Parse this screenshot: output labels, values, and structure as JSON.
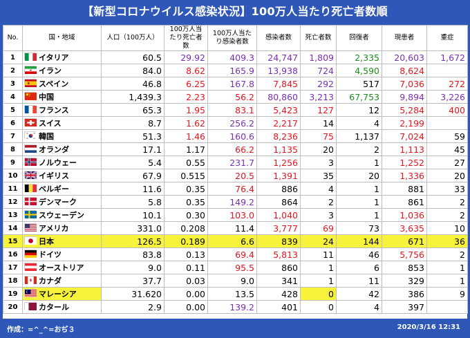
{
  "title": "【新型コロナウイルス感染状況】100万人当たり死亡者数順",
  "headers": [
    "No.",
    "国・地域",
    "人口（100万人）",
    "100万人当たり死亡者数",
    "100万人当たり感染者数",
    "感染者数",
    "死亡者数",
    "回復者",
    "現患者",
    "重症"
  ],
  "rows": [
    {
      "no": "1",
      "name": "イタリア",
      "flag": "italy",
      "cells": [
        "60.5",
        "29.92",
        "409.3",
        "24,747",
        "1,809",
        "2,335",
        "20,603",
        "1,672"
      ],
      "colors": [
        "blk",
        "pur",
        "pur",
        "pur",
        "pur",
        "grn",
        "pur",
        "pur"
      ]
    },
    {
      "no": "2",
      "name": "イラン",
      "flag": "iran",
      "cells": [
        "84.0",
        "8.62",
        "165.9",
        "13,938",
        "724",
        "4,590",
        "8,624",
        ""
      ],
      "colors": [
        "blk",
        "red",
        "pur",
        "pur",
        "pur",
        "grn",
        "red",
        "blk"
      ]
    },
    {
      "no": "3",
      "name": "スペイン",
      "flag": "spain",
      "cells": [
        "46.8",
        "6.25",
        "167.8",
        "7,845",
        "292",
        "517",
        "7,036",
        "272"
      ],
      "colors": [
        "blk",
        "red",
        "pur",
        "red",
        "pur",
        "blk",
        "red",
        "red"
      ]
    },
    {
      "no": "4",
      "name": "中国",
      "flag": "china",
      "cells": [
        "1,439.3",
        "2.23",
        "56.2",
        "80,860",
        "3,213",
        "67,753",
        "9,894",
        "3,226"
      ],
      "colors": [
        "blk",
        "red",
        "red",
        "pur",
        "pur",
        "grn",
        "pur",
        "pur"
      ]
    },
    {
      "no": "5",
      "name": "フランス",
      "flag": "france",
      "cells": [
        "65.3",
        "1.95",
        "83.1",
        "5,423",
        "127",
        "12",
        "5,284",
        "400"
      ],
      "colors": [
        "blk",
        "red",
        "red",
        "red",
        "red",
        "blk",
        "red",
        "red"
      ]
    },
    {
      "no": "6",
      "name": "スイス",
      "flag": "swiss",
      "cells": [
        "8.7",
        "1.62",
        "256.2",
        "2,217",
        "14",
        "4",
        "2,199",
        ""
      ],
      "colors": [
        "blk",
        "red",
        "pur",
        "red",
        "blk",
        "blk",
        "red",
        "blk"
      ]
    },
    {
      "no": "7",
      "name": "韓国",
      "flag": "korea",
      "cells": [
        "51.3",
        "1.46",
        "160.6",
        "8,236",
        "75",
        "1,137",
        "7,024",
        "59"
      ],
      "colors": [
        "blk",
        "red",
        "pur",
        "red",
        "red",
        "blk",
        "red",
        "blk"
      ]
    },
    {
      "no": "8",
      "name": "オランダ",
      "flag": "netherlands",
      "cells": [
        "17.1",
        "1.17",
        "66.2",
        "1,135",
        "20",
        "2",
        "1,113",
        "45"
      ],
      "colors": [
        "blk",
        "blk",
        "red",
        "red",
        "blk",
        "blk",
        "red",
        "blk"
      ]
    },
    {
      "no": "9",
      "name": "ノルウェー",
      "flag": "norway",
      "cells": [
        "5.4",
        "0.55",
        "231.7",
        "1,256",
        "3",
        "1",
        "1,252",
        "27"
      ],
      "colors": [
        "blk",
        "blk",
        "pur",
        "red",
        "blk",
        "blk",
        "red",
        "blk"
      ]
    },
    {
      "no": "10",
      "name": "イギリス",
      "flag": "uk",
      "cells": [
        "67.9",
        "0.515",
        "20.5",
        "1,391",
        "35",
        "20",
        "1,336",
        "20"
      ],
      "colors": [
        "blk",
        "blk",
        "red",
        "red",
        "blk",
        "blk",
        "red",
        "blk"
      ]
    },
    {
      "no": "11",
      "name": "ベルギー",
      "flag": "belgium",
      "cells": [
        "11.6",
        "0.35",
        "76.4",
        "886",
        "4",
        "1",
        "881",
        "33"
      ],
      "colors": [
        "blk",
        "blk",
        "red",
        "blk",
        "blk",
        "blk",
        "blk",
        "blk"
      ]
    },
    {
      "no": "12",
      "name": "デンマーク",
      "flag": "denmark",
      "cells": [
        "5.8",
        "0.35",
        "149.2",
        "864",
        "2",
        "1",
        "861",
        "2"
      ],
      "colors": [
        "blk",
        "blk",
        "pur",
        "blk",
        "blk",
        "blk",
        "blk",
        "blk"
      ]
    },
    {
      "no": "13",
      "name": "スウェーデン",
      "flag": "sweden",
      "cells": [
        "10.1",
        "0.30",
        "103.0",
        "1,040",
        "3",
        "1",
        "1,036",
        "2"
      ],
      "colors": [
        "blk",
        "blk",
        "red",
        "red",
        "blk",
        "blk",
        "red",
        "blk"
      ]
    },
    {
      "no": "14",
      "name": "アメリカ",
      "flag": "usa",
      "cells": [
        "331.0",
        "0.208",
        "11.4",
        "3,777",
        "69",
        "73",
        "3,635",
        "10"
      ],
      "colors": [
        "blk",
        "blk",
        "blk",
        "red",
        "red",
        "blk",
        "red",
        "blk"
      ]
    },
    {
      "no": "15",
      "name": "日本",
      "flag": "japan",
      "cells": [
        "126.5",
        "0.189",
        "6.6",
        "839",
        "24",
        "144",
        "671",
        "36"
      ],
      "colors": [
        "blk",
        "blk",
        "blk",
        "blk",
        "blk",
        "blk",
        "blk",
        "blk"
      ],
      "highlight": true
    },
    {
      "no": "16",
      "name": "ドイツ",
      "flag": "germany",
      "cells": [
        "83.8",
        "0.13",
        "69.4",
        "5,813",
        "11",
        "46",
        "5,756",
        "2"
      ],
      "colors": [
        "blk",
        "blk",
        "red",
        "red",
        "blk",
        "blk",
        "red",
        "blk"
      ]
    },
    {
      "no": "17",
      "name": "オーストリア",
      "flag": "austria",
      "cells": [
        "9.0",
        "0.11",
        "95.5",
        "860",
        "1",
        "6",
        "853",
        "1"
      ],
      "colors": [
        "blk",
        "blk",
        "red",
        "blk",
        "blk",
        "blk",
        "blk",
        "blk"
      ]
    },
    {
      "no": "18",
      "name": "カナダ",
      "flag": "canada",
      "cells": [
        "37.7",
        "0.03",
        "9.0",
        "341",
        "1",
        "11",
        "329",
        "1"
      ],
      "colors": [
        "blk",
        "blk",
        "blk",
        "blk",
        "blk",
        "blk",
        "blk",
        "blk"
      ]
    },
    {
      "no": "19",
      "name": "マレーシア",
      "flag": "malaysia",
      "cells": [
        "31.620",
        "0.00",
        "13.5",
        "428",
        "0",
        "42",
        "386",
        "9"
      ],
      "colors": [
        "blk",
        "blk",
        "blk",
        "blk",
        "blk",
        "blk",
        "blk",
        "blk"
      ],
      "nameHl": true,
      "deathHl": true
    },
    {
      "no": "20",
      "name": "カタール",
      "flag": "qatar",
      "cells": [
        "2.9",
        "0.00",
        "139.2",
        "401",
        "0",
        "4",
        "397",
        ""
      ],
      "colors": [
        "blk",
        "blk",
        "pur",
        "blk",
        "blk",
        "blk",
        "blk",
        "blk"
      ]
    }
  ],
  "footer": {
    "author": "作成：=^_^=おぢ３",
    "timestamp": "2020/3/16 12:31"
  }
}
